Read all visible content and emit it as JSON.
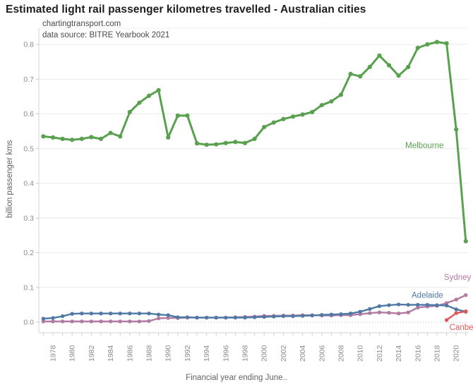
{
  "header": {
    "title": "Estimated light rail passenger kilometres travelled - Australian cities",
    "credit_line1": "chartingtransport.com",
    "credit_line2": "data source: BITRE Yearbook 2021"
  },
  "chart_data": {
    "type": "line",
    "title": "Estimated light rail passenger kilometres travelled - Australian cities",
    "xlabel": "Financial year ending June..",
    "ylabel": "billion passenger kms",
    "x_start_year": 1977,
    "x": [
      1977,
      1978,
      1979,
      1980,
      1981,
      1982,
      1983,
      1984,
      1985,
      1986,
      1987,
      1988,
      1989,
      1990,
      1991,
      1992,
      1993,
      1994,
      1995,
      1996,
      1997,
      1998,
      1999,
      2000,
      2001,
      2002,
      2003,
      2004,
      2005,
      2006,
      2007,
      2008,
      2009,
      2010,
      2011,
      2012,
      2013,
      2014,
      2015,
      2016,
      2017,
      2018,
      2019,
      2020,
      2021
    ],
    "x_tick_labels": [
      "1978",
      "1980",
      "1982",
      "1984",
      "1986",
      "1988",
      "1990",
      "1992",
      "1994",
      "1996",
      "1998",
      "2000",
      "2002",
      "2004",
      "2006",
      "2008",
      "2010",
      "2012",
      "2014",
      "2016",
      "2018",
      "2020"
    ],
    "y_tick_labels": [
      "0.0",
      "0.1",
      "0.2",
      "0.3",
      "0.4",
      "0.5",
      "0.6",
      "0.7",
      "0.8"
    ],
    "ylim": [
      0,
      0.8
    ],
    "grid": "horizontal, zero line dotted",
    "legend": "direct line labels",
    "series": [
      {
        "name": "Sydney",
        "color": "#b07aa1",
        "values": [
          0.002,
          0.002,
          0.002,
          0.002,
          0.002,
          0.002,
          0.002,
          0.002,
          0.002,
          0.002,
          0.002,
          0.003,
          0.011,
          0.012,
          0.012,
          0.013,
          0.013,
          0.013,
          0.013,
          0.013,
          0.014,
          0.015,
          0.016,
          0.018,
          0.018,
          0.019,
          0.019,
          0.02,
          0.02,
          0.019,
          0.019,
          0.02,
          0.02,
          0.023,
          0.026,
          0.028,
          0.027,
          0.025,
          0.028,
          0.042,
          0.045,
          0.047,
          0.055,
          0.065,
          0.078
        ],
        "label_at": {
          "year": 2021.55,
          "value": 0.122,
          "anchor": "end"
        }
      },
      {
        "name": "Adelaide",
        "color": "#4e79a7",
        "values": [
          0.01,
          0.012,
          0.017,
          0.024,
          0.025,
          0.025,
          0.025,
          0.025,
          0.025,
          0.025,
          0.025,
          0.025,
          0.022,
          0.02,
          0.014,
          0.014,
          0.013,
          0.013,
          0.013,
          0.013,
          0.013,
          0.013,
          0.014,
          0.015,
          0.016,
          0.017,
          0.017,
          0.018,
          0.019,
          0.021,
          0.022,
          0.023,
          0.025,
          0.03,
          0.038,
          0.046,
          0.049,
          0.051,
          0.05,
          0.05,
          0.05,
          0.049,
          0.048,
          0.037,
          0.03
        ],
        "label_at": {
          "year": 2017.0,
          "value": 0.07,
          "anchor": "middle"
        }
      },
      {
        "name": "Canberra",
        "color": "#e15759",
        "values": [
          null,
          null,
          null,
          null,
          null,
          null,
          null,
          null,
          null,
          null,
          null,
          null,
          null,
          null,
          null,
          null,
          null,
          null,
          null,
          null,
          null,
          null,
          null,
          null,
          null,
          null,
          null,
          null,
          null,
          null,
          null,
          null,
          null,
          null,
          null,
          null,
          null,
          null,
          null,
          null,
          null,
          null,
          0.006,
          0.026,
          0.031
        ],
        "label_at": {
          "year": 2019.3,
          "value": -0.022,
          "anchor": "start"
        }
      },
      {
        "name": "Melbourne",
        "color": "#59a14f",
        "values": [
          0.535,
          0.532,
          0.528,
          0.525,
          0.528,
          0.533,
          0.528,
          0.545,
          0.535,
          0.605,
          0.632,
          0.652,
          0.668,
          0.532,
          0.595,
          0.595,
          0.515,
          0.511,
          0.512,
          0.516,
          0.519,
          0.516,
          0.528,
          0.562,
          0.575,
          0.585,
          0.592,
          0.598,
          0.605,
          0.625,
          0.636,
          0.655,
          0.715,
          0.708,
          0.735,
          0.768,
          0.74,
          0.71,
          0.735,
          0.79,
          0.8,
          0.807,
          0.803,
          0.555,
          0.233
        ],
        "label_at": {
          "year": 2014.7,
          "value": 0.502,
          "anchor": "start"
        }
      }
    ],
    "style": {
      "gridline_color": "#e9e9e9",
      "zero_line_color": "#b9b9b9",
      "axis_line_color": "#d5d5d5",
      "tick_color": "#c9c9c9",
      "tick_label_color": "#8b8b8b"
    }
  }
}
